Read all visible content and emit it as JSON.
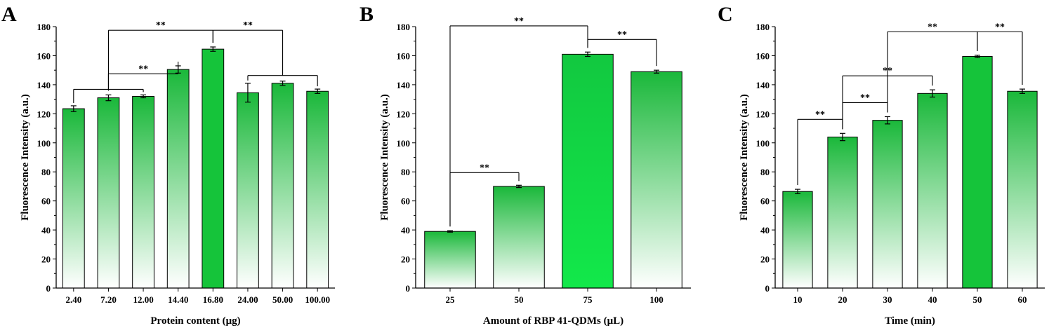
{
  "chart_data": [
    {
      "panel": "A",
      "type": "bar",
      "xlabel": "Protein content (μg)",
      "ylabel": "Fluorescence Intensity (a.u.)",
      "ylim": [
        0,
        180
      ],
      "yticks": [
        0,
        20,
        40,
        60,
        80,
        100,
        120,
        140,
        160,
        180
      ],
      "categories": [
        "2.40",
        "7.20",
        "12.00",
        "14.40",
        "16.80",
        "24.00",
        "50.00",
        "100.00"
      ],
      "values": [
        123.5,
        131,
        132,
        150.5,
        164.5,
        134.5,
        141,
        135.5
      ],
      "errors": [
        2,
        2,
        1,
        2.5,
        1.5,
        6.5,
        1.5,
        1.5
      ],
      "highlight_index": 4,
      "significance": [
        {
          "label": "**",
          "left": [
            0,
            1,
            2
          ],
          "right": [
            3
          ],
          "level": 1
        },
        {
          "label": "**",
          "left": [
            1
          ],
          "right": [
            4
          ],
          "level": 2
        },
        {
          "label": "**",
          "left": [
            4
          ],
          "right": [
            5,
            6,
            7
          ],
          "level": 2
        }
      ]
    },
    {
      "panel": "B",
      "type": "bar",
      "xlabel": "Amount of RBP 41-QDMs (μL)",
      "ylabel": "Fluorescence Intensity (a.u.)",
      "ylim": [
        0,
        180
      ],
      "yticks": [
        0,
        20,
        40,
        60,
        80,
        100,
        120,
        140,
        160,
        180
      ],
      "categories": [
        "25",
        "50",
        "75",
        "100"
      ],
      "values": [
        39,
        70,
        161,
        149
      ],
      "errors": [
        0.5,
        0.8,
        1.5,
        1
      ],
      "highlight_index": 2,
      "significance": [
        {
          "label": "**",
          "left": [
            0
          ],
          "right": [
            1
          ],
          "level": 1
        },
        {
          "label": "**",
          "left": [
            2
          ],
          "right": [
            3
          ],
          "level": 1
        },
        {
          "label": "**",
          "left": [
            0
          ],
          "right": [
            2
          ],
          "level": 2
        }
      ]
    },
    {
      "panel": "C",
      "type": "bar",
      "xlabel": "Time (min)",
      "ylabel": "Fluorescence Intensity (a.u.)",
      "ylim": [
        0,
        180
      ],
      "yticks": [
        0,
        20,
        40,
        60,
        80,
        100,
        120,
        140,
        160,
        180
      ],
      "categories": [
        "10",
        "20",
        "30",
        "40",
        "50",
        "60"
      ],
      "values": [
        66.5,
        104,
        115.5,
        134,
        159.5,
        135.5
      ],
      "errors": [
        1.5,
        2.5,
        2.5,
        2.5,
        0.8,
        1.5
      ],
      "highlight_index": 4,
      "significance": [
        {
          "label": "**",
          "left": [
            0
          ],
          "right": [
            1
          ],
          "level": 1
        },
        {
          "label": "**",
          "left": [
            1
          ],
          "right": [
            2
          ],
          "level": 1
        },
        {
          "label": "**",
          "left": [
            1
          ],
          "right": [
            3
          ],
          "level": 1
        },
        {
          "label": "**",
          "left": [
            2
          ],
          "right": [
            4
          ],
          "level": 1
        },
        {
          "label": "**",
          "left": [
            4
          ],
          "right": [
            5
          ],
          "level": 1
        }
      ]
    }
  ],
  "colors": {
    "bar_top": "#1ab83a",
    "bar_bottom": "#ffffff",
    "bar_highlight": "#15c43a",
    "bar_highlight_bright": "#12e84a",
    "axis": "#000000"
  }
}
